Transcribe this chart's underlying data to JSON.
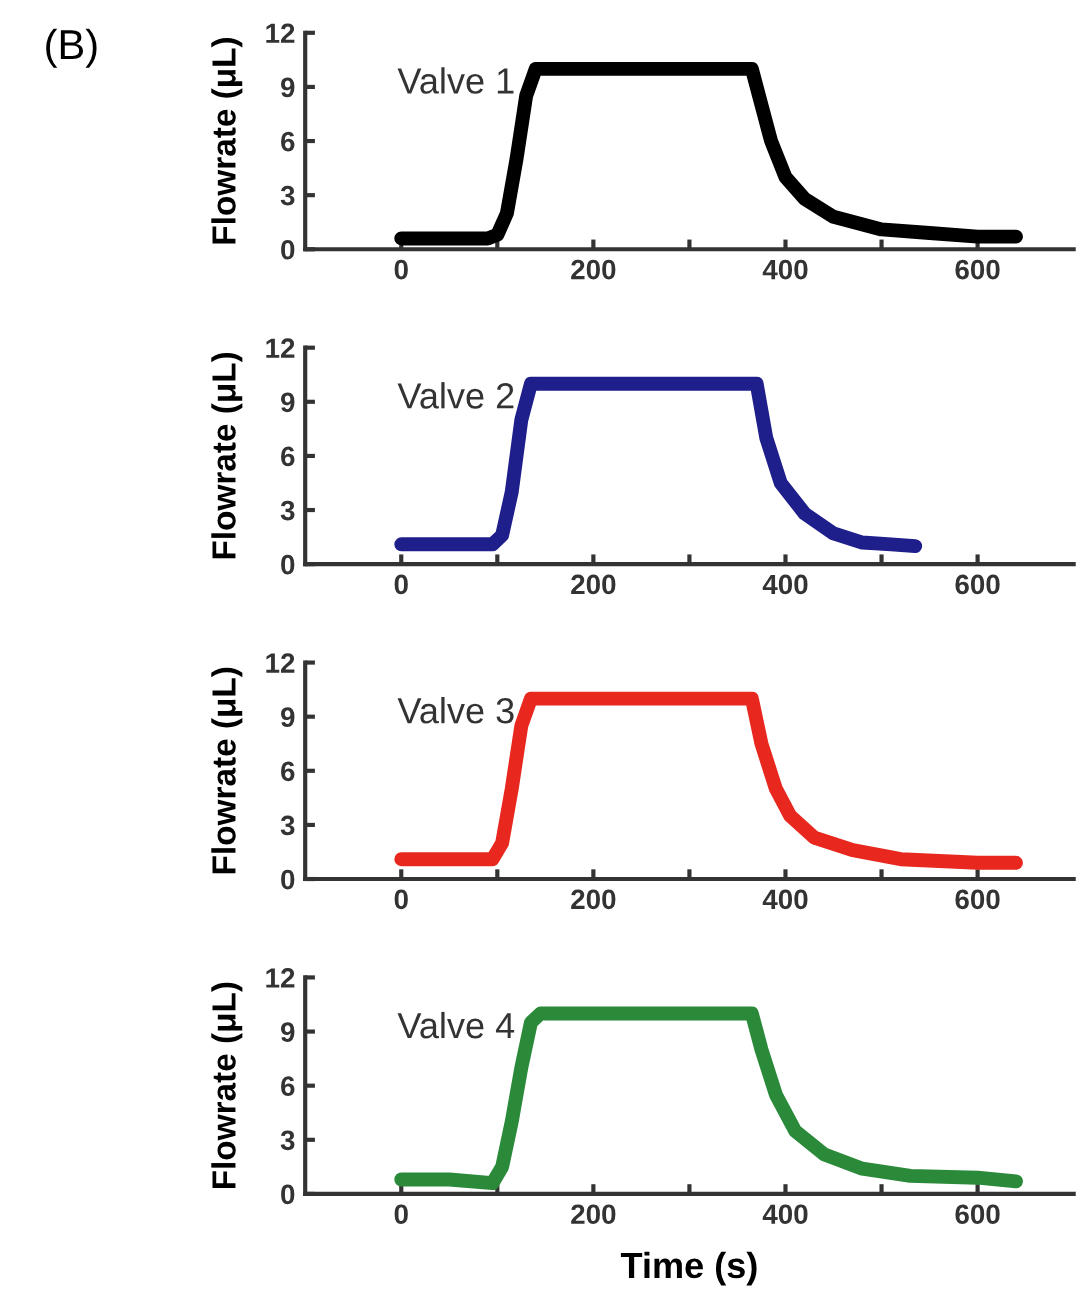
{
  "chart_data": [
    {
      "type": "line",
      "ylabel": "Flowrate (μL)",
      "annotations": [
        "(B)"
      ],
      "xlim": [
        -100,
        700
      ],
      "xticks": [
        0,
        {
          "value": 100,
          "label": null
        },
        200,
        {
          "value": 300,
          "label": null
        },
        400,
        {
          "value": 500,
          "label": null
        },
        600
      ],
      "ylim": [
        0,
        12
      ],
      "yticks": [
        0,
        3,
        6,
        9,
        12
      ],
      "grid": false,
      "legend": false,
      "line_style": "solid",
      "marker": "none",
      "series": [
        {
          "name": "Valve 1",
          "color": "#000000",
          "x": [
            0,
            50,
            90,
            100,
            110,
            120,
            130,
            140,
            200,
            300,
            365,
            375,
            385,
            400,
            420,
            450,
            500,
            550,
            600,
            640
          ],
          "values": [
            0.6,
            0.6,
            0.6,
            0.8,
            2,
            5,
            8.5,
            10,
            10,
            10,
            10,
            8,
            6,
            4,
            2.8,
            1.8,
            1.1,
            0.9,
            0.7,
            0.7
          ]
        }
      ]
    },
    {
      "type": "line",
      "ylabel": "Flowrate (μL)",
      "xlim": [
        -100,
        700
      ],
      "xticks": [
        0,
        {
          "value": 100,
          "label": null
        },
        200,
        {
          "value": 300,
          "label": null
        },
        400,
        {
          "value": 500,
          "label": null
        },
        600
      ],
      "ylim": [
        0,
        12
      ],
      "yticks": [
        0,
        3,
        6,
        9,
        12
      ],
      "grid": false,
      "legend": false,
      "line_style": "solid",
      "marker": "none",
      "series": [
        {
          "name": "Valve 2",
          "color": "#1f1f8c",
          "x": [
            0,
            95,
            105,
            115,
            125,
            135,
            200,
            300,
            370,
            380,
            395,
            420,
            450,
            480,
            510,
            535
          ],
          "values": [
            1.1,
            1.1,
            1.6,
            4,
            8,
            10,
            10,
            10,
            10,
            7,
            4.5,
            2.8,
            1.7,
            1.2,
            1.1,
            1.0
          ]
        }
      ]
    },
    {
      "type": "line",
      "ylabel": "Flowrate (μL)",
      "xlim": [
        -100,
        700
      ],
      "xticks": [
        0,
        {
          "value": 100,
          "label": null
        },
        200,
        {
          "value": 300,
          "label": null
        },
        400,
        {
          "value": 500,
          "label": null
        },
        600
      ],
      "ylim": [
        0,
        12
      ],
      "yticks": [
        0,
        3,
        6,
        9,
        12
      ],
      "grid": false,
      "legend": false,
      "line_style": "solid",
      "marker": "none",
      "series": [
        {
          "name": "Valve 3",
          "color": "#e8281e",
          "x": [
            0,
            95,
            105,
            115,
            125,
            135,
            200,
            300,
            365,
            375,
            390,
            405,
            430,
            470,
            520,
            600,
            640
          ],
          "values": [
            1.1,
            1.1,
            2,
            5,
            8.5,
            10,
            10,
            10,
            10,
            7.5,
            5,
            3.5,
            2.3,
            1.6,
            1.1,
            0.9,
            0.9
          ]
        }
      ]
    },
    {
      "type": "line",
      "ylabel": "Flowrate (μL)",
      "xlabel": "Time (s)",
      "xlim": [
        -100,
        700
      ],
      "xticks": [
        0,
        {
          "value": 100,
          "label": null
        },
        200,
        {
          "value": 300,
          "label": null
        },
        400,
        {
          "value": 500,
          "label": null
        },
        600
      ],
      "ylim": [
        0,
        12
      ],
      "yticks": [
        0,
        3,
        6,
        9,
        12
      ],
      "grid": false,
      "legend": false,
      "line_style": "solid",
      "marker": "none",
      "series": [
        {
          "name": "Valve 4",
          "color": "#2a8a3a",
          "x": [
            0,
            50,
            95,
            105,
            115,
            125,
            135,
            145,
            200,
            300,
            365,
            375,
            390,
            410,
            440,
            480,
            530,
            600,
            640
          ],
          "values": [
            0.8,
            0.8,
            0.6,
            1.5,
            4,
            7,
            9.5,
            10,
            10,
            10,
            10,
            8,
            5.5,
            3.5,
            2.2,
            1.4,
            1,
            0.9,
            0.7
          ]
        }
      ]
    }
  ]
}
